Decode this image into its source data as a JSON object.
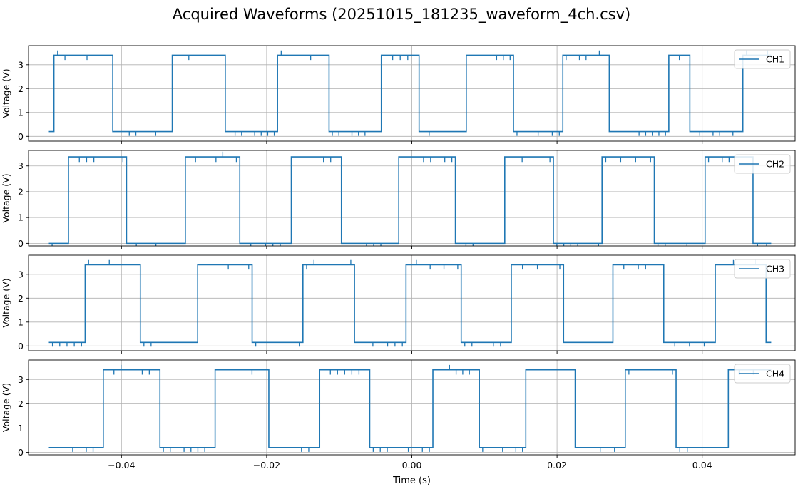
{
  "figure": {
    "title": "Acquired Waveforms (20251015_181235_waveform_4ch.csv)",
    "line_color": "#1f77b4",
    "grid_color": "#b0b0b0"
  },
  "chart_data": [
    {
      "type": "line",
      "legend": "CH1",
      "legend_position": "top-right",
      "ylabel": "Voltage (V)",
      "xlim": [
        -0.0528,
        0.0528
      ],
      "ylim": [
        -0.2,
        3.8
      ],
      "yticks": [
        "0",
        "1",
        "2",
        "3"
      ],
      "grid": true,
      "low_level": 0.2,
      "high_level": 3.4,
      "transitions": [
        -0.05,
        -0.0493,
        -0.0412,
        -0.033,
        -0.0257,
        -0.0185,
        -0.0114,
        -0.0042,
        0.001,
        0.0075,
        0.014,
        0.0208,
        0.0272,
        0.0354,
        0.0383,
        0.0456,
        0.0495
      ]
    },
    {
      "type": "line",
      "legend": "CH2",
      "legend_position": "top-right",
      "ylabel": "Voltage (V)",
      "xlim": [
        -0.0528,
        0.0528
      ],
      "ylim": [
        -0.1,
        3.6
      ],
      "yticks": [
        "0",
        "1",
        "2",
        "3"
      ],
      "grid": true,
      "low_level": 0.0,
      "high_level": 3.35,
      "transitions": [
        -0.05,
        -0.0473,
        -0.0393,
        -0.0312,
        -0.0237,
        -0.0166,
        -0.0097,
        -0.0018,
        0.006,
        0.0128,
        0.0195,
        0.0262,
        0.0334,
        0.0404,
        0.047,
        0.0495
      ]
    },
    {
      "type": "line",
      "legend": "CH3",
      "legend_position": "top-right",
      "ylabel": "Voltage (V)",
      "xlim": [
        -0.0528,
        0.0528
      ],
      "ylim": [
        -0.2,
        3.8
      ],
      "yticks": [
        "0",
        "1",
        "2",
        "3"
      ],
      "grid": true,
      "low_level": 0.15,
      "high_level": 3.4,
      "transitions": [
        -0.05,
        -0.045,
        -0.0374,
        -0.0295,
        -0.022,
        -0.015,
        -0.0079,
        -0.0008,
        0.0068,
        0.0137,
        0.0209,
        0.0277,
        0.0347,
        0.0418,
        0.0488,
        0.0495
      ]
    },
    {
      "type": "line",
      "legend": "CH4",
      "legend_position": "top-right",
      "ylabel": "Voltage (V)",
      "xlabel": "Time (s)",
      "xlim": [
        -0.0528,
        0.0528
      ],
      "ylim": [
        -0.1,
        3.8
      ],
      "xticks": [
        "−0.04",
        "−0.02",
        "0.00",
        "0.02",
        "0.04"
      ],
      "yticks": [
        "0",
        "1",
        "2",
        "3"
      ],
      "grid": true,
      "low_level": 0.2,
      "high_level": 3.4,
      "transitions": [
        -0.05,
        -0.0425,
        -0.0347,
        -0.0271,
        -0.0197,
        -0.0127,
        -0.0058,
        0.0029,
        0.0093,
        0.0157,
        0.0225,
        0.0294,
        0.0364,
        0.0436,
        0.0495
      ]
    }
  ]
}
